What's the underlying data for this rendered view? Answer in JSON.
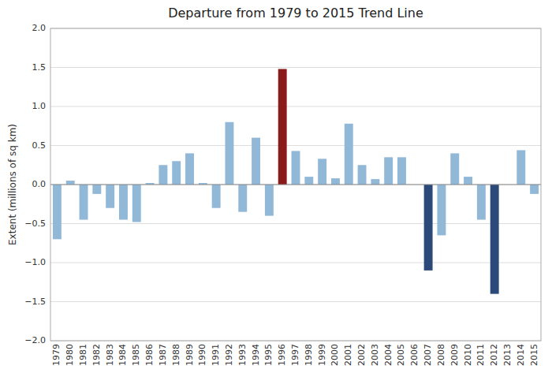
{
  "chart_data": {
    "type": "bar",
    "title": "Departure from 1979 to 2015 Trend Line",
    "ylabel": "Extent (millions of sq km)",
    "categories": [
      "1979",
      "1980",
      "1981",
      "1982",
      "1983",
      "1984",
      "1985",
      "1986",
      "1987",
      "1988",
      "1989",
      "1990",
      "1991",
      "1992",
      "1993",
      "1994",
      "1995",
      "1996",
      "1997",
      "1998",
      "1999",
      "2000",
      "2001",
      "2002",
      "2003",
      "2004",
      "2005",
      "2006",
      "2007",
      "2008",
      "2009",
      "2010",
      "2011",
      "2012",
      "2013",
      "2014",
      "2015"
    ],
    "values": [
      -0.7,
      0.05,
      -0.45,
      -0.12,
      -0.3,
      -0.45,
      -0.48,
      0.02,
      0.25,
      0.3,
      0.4,
      0.02,
      -0.3,
      0.8,
      -0.35,
      0.6,
      -0.4,
      1.48,
      0.43,
      0.1,
      0.33,
      0.08,
      0.78,
      0.25,
      0.07,
      0.35,
      0.35,
      0.0,
      -1.1,
      -0.65,
      0.4,
      0.1,
      -0.45,
      -1.4,
      0.0,
      0.44,
      -0.12
    ],
    "colors": [
      "#92B8D8",
      "#92B8D8",
      "#92B8D8",
      "#92B8D8",
      "#92B8D8",
      "#92B8D8",
      "#92B8D8",
      "#92B8D8",
      "#92B8D8",
      "#92B8D8",
      "#92B8D8",
      "#92B8D8",
      "#92B8D8",
      "#92B8D8",
      "#92B8D8",
      "#92B8D8",
      "#92B8D8",
      "#8B1A1A",
      "#92B8D8",
      "#92B8D8",
      "#92B8D8",
      "#92B8D8",
      "#92B8D8",
      "#92B8D8",
      "#92B8D8",
      "#92B8D8",
      "#92B8D8",
      "#92B8D8",
      "#2B4A7A",
      "#92B8D8",
      "#92B8D8",
      "#92B8D8",
      "#92B8D8",
      "#2B4A7A",
      "#92B8D8",
      "#92B8D8",
      "#92B8D8"
    ],
    "ylim": [
      -2.0,
      2.0
    ],
    "yticks": [
      {
        "value": -2.0,
        "label": "−2.0"
      },
      {
        "value": -1.5,
        "label": "−1.5"
      },
      {
        "value": -1.0,
        "label": "−1.0"
      },
      {
        "value": -0.5,
        "label": "−0.5"
      },
      {
        "value": 0.0,
        "label": "0.0"
      },
      {
        "value": 0.5,
        "label": "0.5"
      },
      {
        "value": 1.0,
        "label": "1.0"
      },
      {
        "value": 1.5,
        "label": "1.5"
      },
      {
        "value": 2.0,
        "label": "2.0"
      }
    ],
    "grid": true
  }
}
